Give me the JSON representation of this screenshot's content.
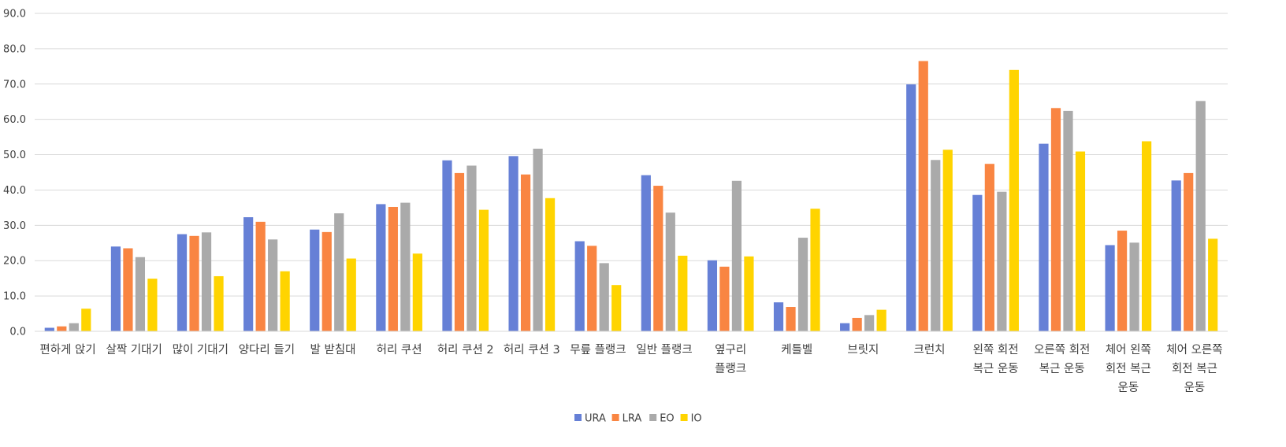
{
  "chart_data": {
    "type": "bar",
    "title": "",
    "xlabel": "",
    "ylabel": "",
    "ylim": [
      0,
      90
    ],
    "y_ticks": [
      "0.0",
      "10.0",
      "20.0",
      "30.0",
      "40.0",
      "50.0",
      "60.0",
      "70.0",
      "80.0",
      "90.0"
    ],
    "grid": true,
    "legend_position": "bottom",
    "categories": [
      [
        "편하게 앉기"
      ],
      [
        "살짝 기대기"
      ],
      [
        "많이 기대기"
      ],
      [
        "양다리 들기"
      ],
      [
        "발 받침대"
      ],
      [
        "허리 쿠션"
      ],
      [
        "허리 쿠션 2"
      ],
      [
        "허리 쿠션 3"
      ],
      [
        "무릎 플랭크"
      ],
      [
        "일반 플랭크"
      ],
      [
        "옆구리",
        "플랭크"
      ],
      [
        "케틀벨"
      ],
      [
        "브릿지"
      ],
      [
        "크런치"
      ],
      [
        "왼쪽 회전",
        "복근 운동"
      ],
      [
        "오른쪽 회전",
        "복근 운동"
      ],
      [
        "체어 왼쪽",
        "회전 복근",
        "운동"
      ],
      [
        "체어 오른쪽",
        "회전 복근",
        "운동"
      ]
    ],
    "series": [
      {
        "name": "URA",
        "color": "#6680D6",
        "values": [
          1.0,
          24.0,
          27.5,
          32.3,
          28.8,
          36.0,
          48.4,
          49.6,
          25.5,
          44.2,
          20.1,
          8.2,
          2.3,
          69.9,
          38.6,
          53.1,
          24.4,
          42.7
        ]
      },
      {
        "name": "LRA",
        "color": "#F98542",
        "values": [
          1.4,
          23.5,
          27.0,
          31.0,
          28.1,
          35.2,
          44.8,
          44.4,
          24.2,
          41.2,
          18.3,
          6.9,
          3.8,
          76.5,
          47.4,
          63.2,
          28.5,
          44.8
        ]
      },
      {
        "name": "EO",
        "color": "#AAAAAA",
        "values": [
          2.3,
          21.0,
          28.0,
          26.0,
          33.4,
          36.4,
          46.9,
          51.7,
          19.3,
          33.6,
          42.6,
          26.5,
          4.6,
          48.5,
          39.5,
          62.4,
          25.1,
          65.2
        ]
      },
      {
        "name": "IO",
        "color": "#FFD400",
        "values": [
          6.4,
          14.9,
          15.6,
          17.0,
          20.6,
          22.0,
          34.4,
          37.7,
          13.1,
          21.4,
          21.2,
          34.7,
          6.1,
          51.4,
          74.0,
          50.9,
          53.8,
          26.2
        ]
      }
    ]
  }
}
